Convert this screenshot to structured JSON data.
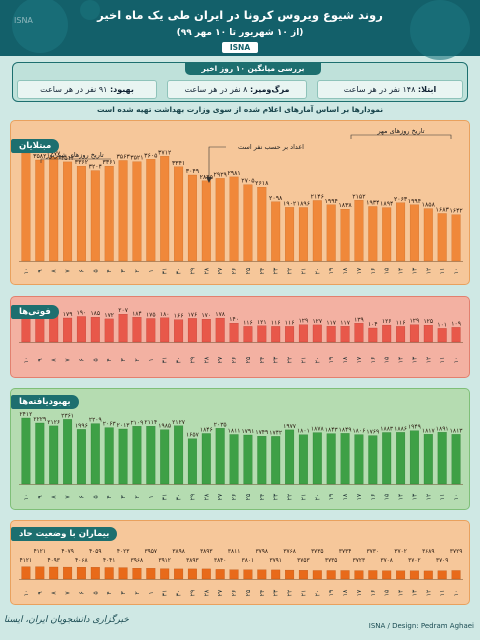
{
  "header": {
    "title": "روند شیوع ویروس کرونا در ایران طی یک ماه اخیر",
    "subtitle": "(از ۱۰ شهریور تا ۱۰ مهر ۹۹)",
    "logo": "ISNA",
    "watermark": "ISNA"
  },
  "summary": {
    "title": "بررسی میانگین ۱۰ روز اخیر",
    "infections": {
      "label": "ابتلا:",
      "text": "۱۴۸ نفر در هر ساعت"
    },
    "deaths": {
      "label": "مرگ‌ومیر:",
      "text": "۸ نفر در هر ساعت"
    },
    "recovered": {
      "label": "بهبود:",
      "text": "۹۱ نفر در هر ساعت"
    }
  },
  "note": "نمودارها بر اساس آمارهای اعلام شده از سوی وزارت بهداشت تهیه شده است",
  "annotations": {
    "mehr_dates": "تاریخ روزهای مهر",
    "shahrivar_dates": "تاریخ روزهای شهریور",
    "by_hour": "اعداد بر حسب نفر است"
  },
  "footer": {
    "left": "خبرگزاری دانشجویان ایران، ایسنا",
    "right": "ISNA / Design: Pedram Aghaei"
  },
  "colors": {
    "orange": "#f0883a",
    "red": "#e8584a",
    "green": "#3ea046",
    "dark_orange": "#e86a1a",
    "teal": "#1d6f6f"
  },
  "chart_data": [
    {
      "type": "bar",
      "title": "مبتلایان",
      "categories": [
        "۱۰",
        "۱۱",
        "۱۲",
        "۱۳",
        "۱۴",
        "۱۵",
        "۱۶",
        "۱۷",
        "۱۸",
        "۱۹",
        "۲۰",
        "۲۱",
        "۲۲",
        "۲۳",
        "۲۴",
        "۲۵",
        "۲۶",
        "۲۷",
        "۲۸",
        "۲۹",
        "۳۰",
        "۳۱",
        "۱",
        "۲",
        "۳",
        "۴",
        "۵",
        "۶",
        "۷",
        "۸",
        "۹",
        "۱۰"
      ],
      "values": [
        1642,
        1683,
        1858,
        1994,
        2063,
        1894,
        1934,
        2152,
        1838,
        1994,
        2146,
        1896,
        1902,
        2098,
        2618,
        2705,
        2981,
        2929,
        2845,
        3049,
        3341,
        3712,
        3605,
        3521,
        3563,
        3361,
        3204,
        3362,
        3512,
        3677,
        3582,
        3825
      ],
      "labels": [
        "۱۶۴۲",
        "۱۶۸۳",
        "۱۸۵۸",
        "۱۹۹۴",
        "۲۰۶۳",
        "۱۸۹۴",
        "۱۹۳۴",
        "۲۱۵۲",
        "۱۸۳۸",
        "۱۹۹۴",
        "۲۱۴۶",
        "۱۸۹۶",
        "۱۹۰۲",
        "۲۰۹۸",
        "۲۶۱۸",
        "۲۷۰۵",
        "۲۹۸۱",
        "۲۹۲۹",
        "۲۸۴۵",
        "۳۰۴۹",
        "۳۳۴۱",
        "۳۷۱۲",
        "۳۶۰۵",
        "۳۵۲۱",
        "۳۵۶۳",
        "۳۳۶۱",
        "۳۲۰۴",
        "۳۳۶۲",
        "۳۵۱۲",
        "۳۶۷۷",
        "۳۵۸۲",
        "۳۸۲۵"
      ]
    },
    {
      "type": "bar",
      "title": "فوتی‌ها",
      "categories": [
        "۱۰",
        "۱۱",
        "۱۲",
        "۱۳",
        "۱۴",
        "۱۵",
        "۱۶",
        "۱۷",
        "۱۸",
        "۱۹",
        "۲۰",
        "۲۱",
        "۲۲",
        "۲۳",
        "۲۴",
        "۲۵",
        "۲۶",
        "۲۷",
        "۲۸",
        "۲۹",
        "۳۰",
        "۳۱",
        "۱",
        "۲",
        "۳",
        "۴",
        "۵",
        "۶",
        "۷",
        "۸",
        "۹",
        "۱۰"
      ],
      "values": [
        109,
        101,
        125,
        129,
        116,
        126,
        104,
        139,
        117,
        117,
        127,
        129,
        116,
        116,
        121,
        116,
        140,
        178,
        170,
        176,
        166,
        180,
        175,
        184,
        207,
        172,
        185,
        190,
        179,
        207,
        183,
        211
      ],
      "labels": [
        "۱۰۹",
        "۱۰۱",
        "۱۲۵",
        "۱۲۹",
        "۱۱۶",
        "۱۲۶",
        "۱۰۴",
        "۱۳۹",
        "۱۱۷",
        "۱۱۷",
        "۱۲۷",
        "۱۲۹",
        "۱۱۶",
        "۱۱۶",
        "۱۲۱",
        "۱۱۶",
        "۱۴۰",
        "۱۷۸",
        "۱۷۰",
        "۱۷۶",
        "۱۶۶",
        "۱۸۰",
        "۱۷۵",
        "۱۸۴",
        "۲۰۷",
        "۱۷۲",
        "۱۸۵",
        "۱۹۰",
        "۱۷۹",
        "۲۰۷",
        "۱۸۳",
        "۲۱۱"
      ]
    },
    {
      "type": "bar",
      "title": "بهبودیافته‌ها",
      "categories": [
        "۱۰",
        "۱۱",
        "۱۲",
        "۱۳",
        "۱۴",
        "۱۵",
        "۱۶",
        "۱۷",
        "۱۸",
        "۱۹",
        "۲۰",
        "۲۱",
        "۲۲",
        "۲۳",
        "۲۴",
        "۲۵",
        "۲۶",
        "۲۷",
        "۲۸",
        "۲۹",
        "۳۰",
        "۳۱",
        "۱",
        "۲",
        "۳",
        "۴",
        "۵",
        "۶",
        "۷",
        "۸",
        "۹",
        "۱۰"
      ],
      "values": [
        1813,
        1891,
        1817,
        1949,
        1886,
        1883,
        1769,
        1806,
        1849,
        1843,
        1878,
        1801,
        1977,
        1742,
        1749,
        1791,
        1811,
        2035,
        1846,
        1657,
        2127,
        1985,
        2114,
        2109,
        2013,
        2063,
        2209,
        1996,
        2361,
        2126,
        2229,
        2412
      ],
      "labels": [
        "۱۸۱۳",
        "۱۸۹۱",
        "۱۸۱۷",
        "۱۹۴۹",
        "۱۸۸۶",
        "۱۸۸۳",
        "۱۷۶۹",
        "۱۸۰۶",
        "۱۸۴۹",
        "۱۸۴۳",
        "۱۸۷۸",
        "۱۸۰۱",
        "۱۹۷۷",
        "۱۷۴۲",
        "۱۷۴۹",
        "۱۷۹۱",
        "۱۸۱۱",
        "۲۰۳۵",
        "۱۸۴۶",
        "۱۶۵۷",
        "۲۱۲۷",
        "۱۹۸۵",
        "۲۱۱۴",
        "۲۱۰۹",
        "۲۰۱۳",
        "۲۰۶۳",
        "۲۲۰۹",
        "۱۹۹۶",
        "۲۳۶۱",
        "۲۱۲۶",
        "۲۲۲۹",
        "۲۴۱۲"
      ]
    },
    {
      "type": "bar",
      "title": "بیماران با وضعیت حاد",
      "categories": [
        "۱۰",
        "۱۱",
        "۱۲",
        "۱۳",
        "۱۴",
        "۱۵",
        "۱۶",
        "۱۷",
        "۱۸",
        "۱۹",
        "۲۰",
        "۲۱",
        "۲۲",
        "۲۳",
        "۲۴",
        "۲۵",
        "۲۶",
        "۲۷",
        "۲۸",
        "۲۹",
        "۳۰",
        "۳۱",
        "۱",
        "۲",
        "۳",
        "۴",
        "۵",
        "۶",
        "۷",
        "۸",
        "۹",
        "۱۰"
      ],
      "values": [
        3729,
        3709,
        3689,
        3702,
        3702,
        3708,
        3730,
        3723,
        3734,
        3735,
        3735,
        3753,
        3768,
        3791,
        3798,
        3801,
        3811,
        3840,
        3893,
        3893,
        3898,
        3912,
        3957,
        3968,
        4023,
        4041,
        4059,
        4068,
        4079,
        4093,
        4121,
        4121
      ],
      "labels": [
        "۳۷۲۹",
        "۳۷۰۹",
        "۳۶۸۹",
        "۳۷۰۲",
        "۳۷۰۲",
        "۳۷۰۸",
        "۳۷۳۰",
        "۳۷۲۳",
        "۳۷۳۴",
        "۳۷۳۵",
        "۳۷۳۵",
        "۳۷۵۳",
        "۳۷۶۸",
        "۳۷۹۱",
        "۳۷۹۸",
        "۳۸۰۱",
        "۳۸۱۱",
        "۳۸۴۰",
        "۳۸۹۳",
        "۳۸۹۳",
        "۳۸۹۸",
        "۳۹۱۲",
        "۳۹۵۷",
        "۳۹۶۸",
        "۴۰۲۳",
        "۴۰۴۱",
        "۴۰۵۹",
        "۴۰۶۸",
        "۴۰۷۹",
        "۴۰۹۳",
        "۴۱۲۱",
        "۴۱۲۱"
      ]
    }
  ]
}
